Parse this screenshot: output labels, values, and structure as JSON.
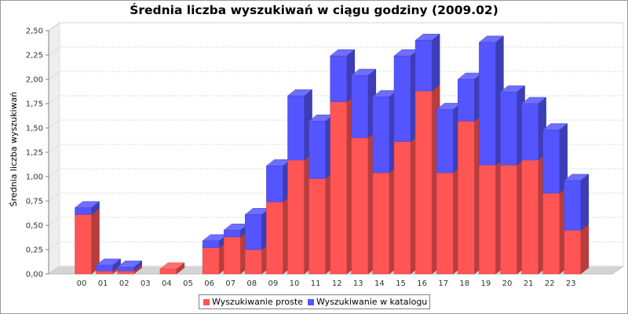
{
  "chart_data": {
    "type": "bar",
    "stacked": true,
    "style": "3d",
    "title": "Średnia liczba wyszukiwań w ciągu godziny (2009.02)",
    "xlabel": "",
    "ylabel": "Średnia liczba wyszukiwań",
    "ylim": [
      0,
      2.5
    ],
    "y_ticks": [
      "0,00",
      "0,25",
      "0,50",
      "0,75",
      "1,00",
      "1,25",
      "1,50",
      "1,75",
      "2,00",
      "2,25",
      "2,50"
    ],
    "grid": true,
    "legend_position": "bottom",
    "categories": [
      "00",
      "01",
      "02",
      "03",
      "04",
      "05",
      "06",
      "07",
      "08",
      "09",
      "10",
      "11",
      "12",
      "13",
      "14",
      "15",
      "16",
      "17",
      "18",
      "19",
      "20",
      "21",
      "22",
      "23"
    ],
    "series": [
      {
        "name": "Wyszukiwanie proste",
        "color": "#ff5555",
        "values": [
          0.61,
          0.03,
          0.03,
          0,
          0.05,
          0,
          0.27,
          0.38,
          0.25,
          0.74,
          1.17,
          0.98,
          1.77,
          1.4,
          1.04,
          1.36,
          1.88,
          1.04,
          1.57,
          1.12,
          1.12,
          1.17,
          0.83,
          0.45
        ]
      },
      {
        "name": "Wyszukiwanie w katalogu",
        "color": "#5555ff",
        "values": [
          0.07,
          0.06,
          0.04,
          0,
          0,
          0,
          0.07,
          0.07,
          0.36,
          0.37,
          0.66,
          0.59,
          0.47,
          0.64,
          0.78,
          0.88,
          0.52,
          0.65,
          0.43,
          1.26,
          0.75,
          0.58,
          0.65,
          0.51
        ]
      }
    ]
  }
}
